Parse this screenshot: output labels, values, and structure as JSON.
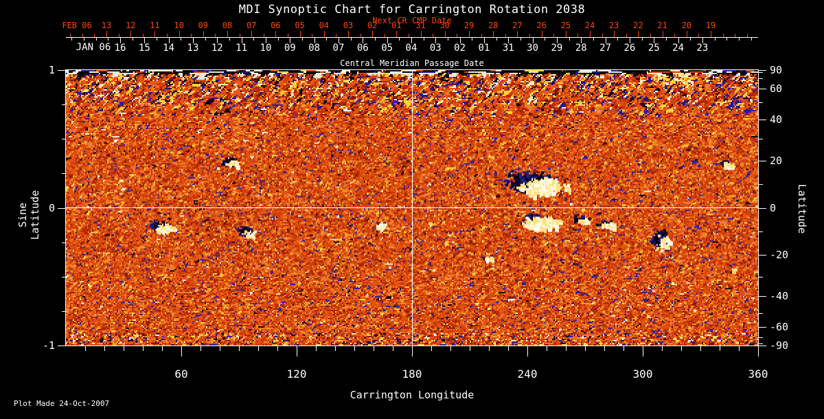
{
  "title": "MDI Synoptic Chart for Carrington Rotation 2038",
  "colors": {
    "background": "#000000",
    "text": "#ffffff",
    "accent_orange": "#ff4500",
    "grid": "#ffffff"
  },
  "date_axis": {
    "next_cr_label": "Next CR CMP Date",
    "cmp_label": "Central Meridian Passage Date",
    "next_cr_month_label": "FEB 06",
    "current_month_label": "JAN 06",
    "next_cr_days": [
      "13",
      "12",
      "11",
      "10",
      "09",
      "08",
      "07",
      "06",
      "05",
      "04",
      "03",
      "02",
      "01",
      "31",
      "30",
      "29",
      "28",
      "27",
      "26",
      "25",
      "24",
      "23",
      "22",
      "21",
      "20",
      "19"
    ],
    "current_days": [
      "16",
      "15",
      "14",
      "13",
      "12",
      "11",
      "10",
      "09",
      "08",
      "07",
      "06",
      "05",
      "04",
      "03",
      "02",
      "01",
      "31",
      "30",
      "29",
      "28",
      "27",
      "26",
      "25",
      "24",
      "23"
    ]
  },
  "left_axis": {
    "label": "Sine Latitude",
    "ticks": [
      "1",
      "0",
      "-1"
    ]
  },
  "right_axis": {
    "label": "Latitude",
    "ticks": [
      "90",
      "60",
      "40",
      "20",
      "0",
      "-20",
      "-40",
      "-60",
      "-90"
    ]
  },
  "bottom_axis": {
    "label": "Carrington Longitude",
    "ticks": [
      "60",
      "120",
      "180",
      "240",
      "300",
      "360"
    ]
  },
  "footer": {
    "plot_made": "Plot Made 24-Oct-2007"
  },
  "chart_data": {
    "type": "heatmap",
    "title": "MDI Synoptic Chart for Carrington Rotation 2038",
    "subtitle_top": "Next CR CMP Date",
    "subtitle_bottom": "Central Meridian Passage Date",
    "xlabel": "Carrington Longitude",
    "ylabel_left": "Sine Latitude",
    "ylabel_right": "Latitude",
    "xlim": [
      0,
      360
    ],
    "ylim_sine_latitude": [
      -1,
      1
    ],
    "x_major_ticks": [
      60,
      120,
      180,
      240,
      300,
      360
    ],
    "x_minor_tick_step_deg": 10,
    "left_tick_values": [
      1,
      0,
      -1
    ],
    "left_minor_tick_values": [
      0.75,
      0.5,
      0.25,
      -0.25,
      -0.5,
      -0.75
    ],
    "right_tick_values_deg": [
      90,
      60,
      40,
      20,
      0,
      -20,
      -40,
      -60,
      -90
    ],
    "right_minor_tick_values_deg": [
      80,
      70,
      50,
      30,
      10,
      -10,
      -30,
      -50,
      -70,
      -80
    ],
    "gridlines": {
      "horizontal_at_sine_latitude": 0,
      "vertical_at_longitude_deg": 180
    },
    "grid": true,
    "legend": "none",
    "colormap_palette": [
      "#e2540e",
      "#d04008",
      "#f07a30",
      "#b82604",
      "#942000",
      "#f0a028",
      "#ffd64a",
      "#2a20a8",
      "#100408",
      "#fff0d0"
    ],
    "polar_band_palette": [
      "#ffd23c",
      "#fff0c0",
      "#e85a12",
      "#d0400a",
      "#b62404",
      "#201890",
      "#080210",
      "#f4f4f4",
      "#7a1400"
    ],
    "dark_region_colors": [
      "#030211",
      "#10084a",
      "#221a8e",
      "#000000"
    ],
    "white_region_colors": [
      "#fffef4",
      "#fff4c8",
      "#ffe284"
    ],
    "description": "Full-Sun magnetic field synoptic map: speckled orange/red quiet-Sun field, noisy high-latitude polar bands, and bipolar active regions shown as black/navy (negative) and white/cream (positive) patches.",
    "active_regions": [
      {
        "longitude_deg": 86,
        "sine_latitude": 0.33,
        "width_deg": 9,
        "height_sine": 0.07,
        "polarity": "mixed",
        "dark_fraction": 0.6
      },
      {
        "longitude_deg": 50,
        "sine_latitude": -0.14,
        "width_deg": 13,
        "height_sine": 0.09,
        "polarity": "mixed",
        "dark_fraction": 0.35
      },
      {
        "longitude_deg": 94,
        "sine_latitude": -0.18,
        "width_deg": 9,
        "height_sine": 0.09,
        "polarity": "negative",
        "dark_fraction": 0.85
      },
      {
        "longitude_deg": 163,
        "sine_latitude": -0.13,
        "width_deg": 7,
        "height_sine": 0.06,
        "polarity": "positive",
        "dark_fraction": 0.1
      },
      {
        "longitude_deg": 245,
        "sine_latitude": 0.17,
        "width_deg": 30,
        "height_sine": 0.16,
        "polarity": "mixed",
        "dark_fraction": 0.55
      },
      {
        "longitude_deg": 245,
        "sine_latitude": -0.1,
        "width_deg": 22,
        "height_sine": 0.11,
        "polarity": "positive",
        "dark_fraction": 0.15
      },
      {
        "longitude_deg": 268,
        "sine_latitude": -0.09,
        "width_deg": 8,
        "height_sine": 0.05,
        "polarity": "mixed",
        "dark_fraction": 0.5
      },
      {
        "longitude_deg": 281,
        "sine_latitude": -0.12,
        "width_deg": 10,
        "height_sine": 0.06,
        "polarity": "positive",
        "dark_fraction": 0.3
      },
      {
        "longitude_deg": 310,
        "sine_latitude": -0.24,
        "width_deg": 10,
        "height_sine": 0.14,
        "polarity": "negative",
        "dark_fraction": 0.85
      },
      {
        "longitude_deg": 343,
        "sine_latitude": 0.32,
        "width_deg": 6,
        "height_sine": 0.06,
        "polarity": "mixed",
        "dark_fraction": 0.55
      },
      {
        "longitude_deg": 219,
        "sine_latitude": -0.37,
        "width_deg": 6,
        "height_sine": 0.04,
        "polarity": "positive",
        "dark_fraction": 0.05
      }
    ]
  }
}
